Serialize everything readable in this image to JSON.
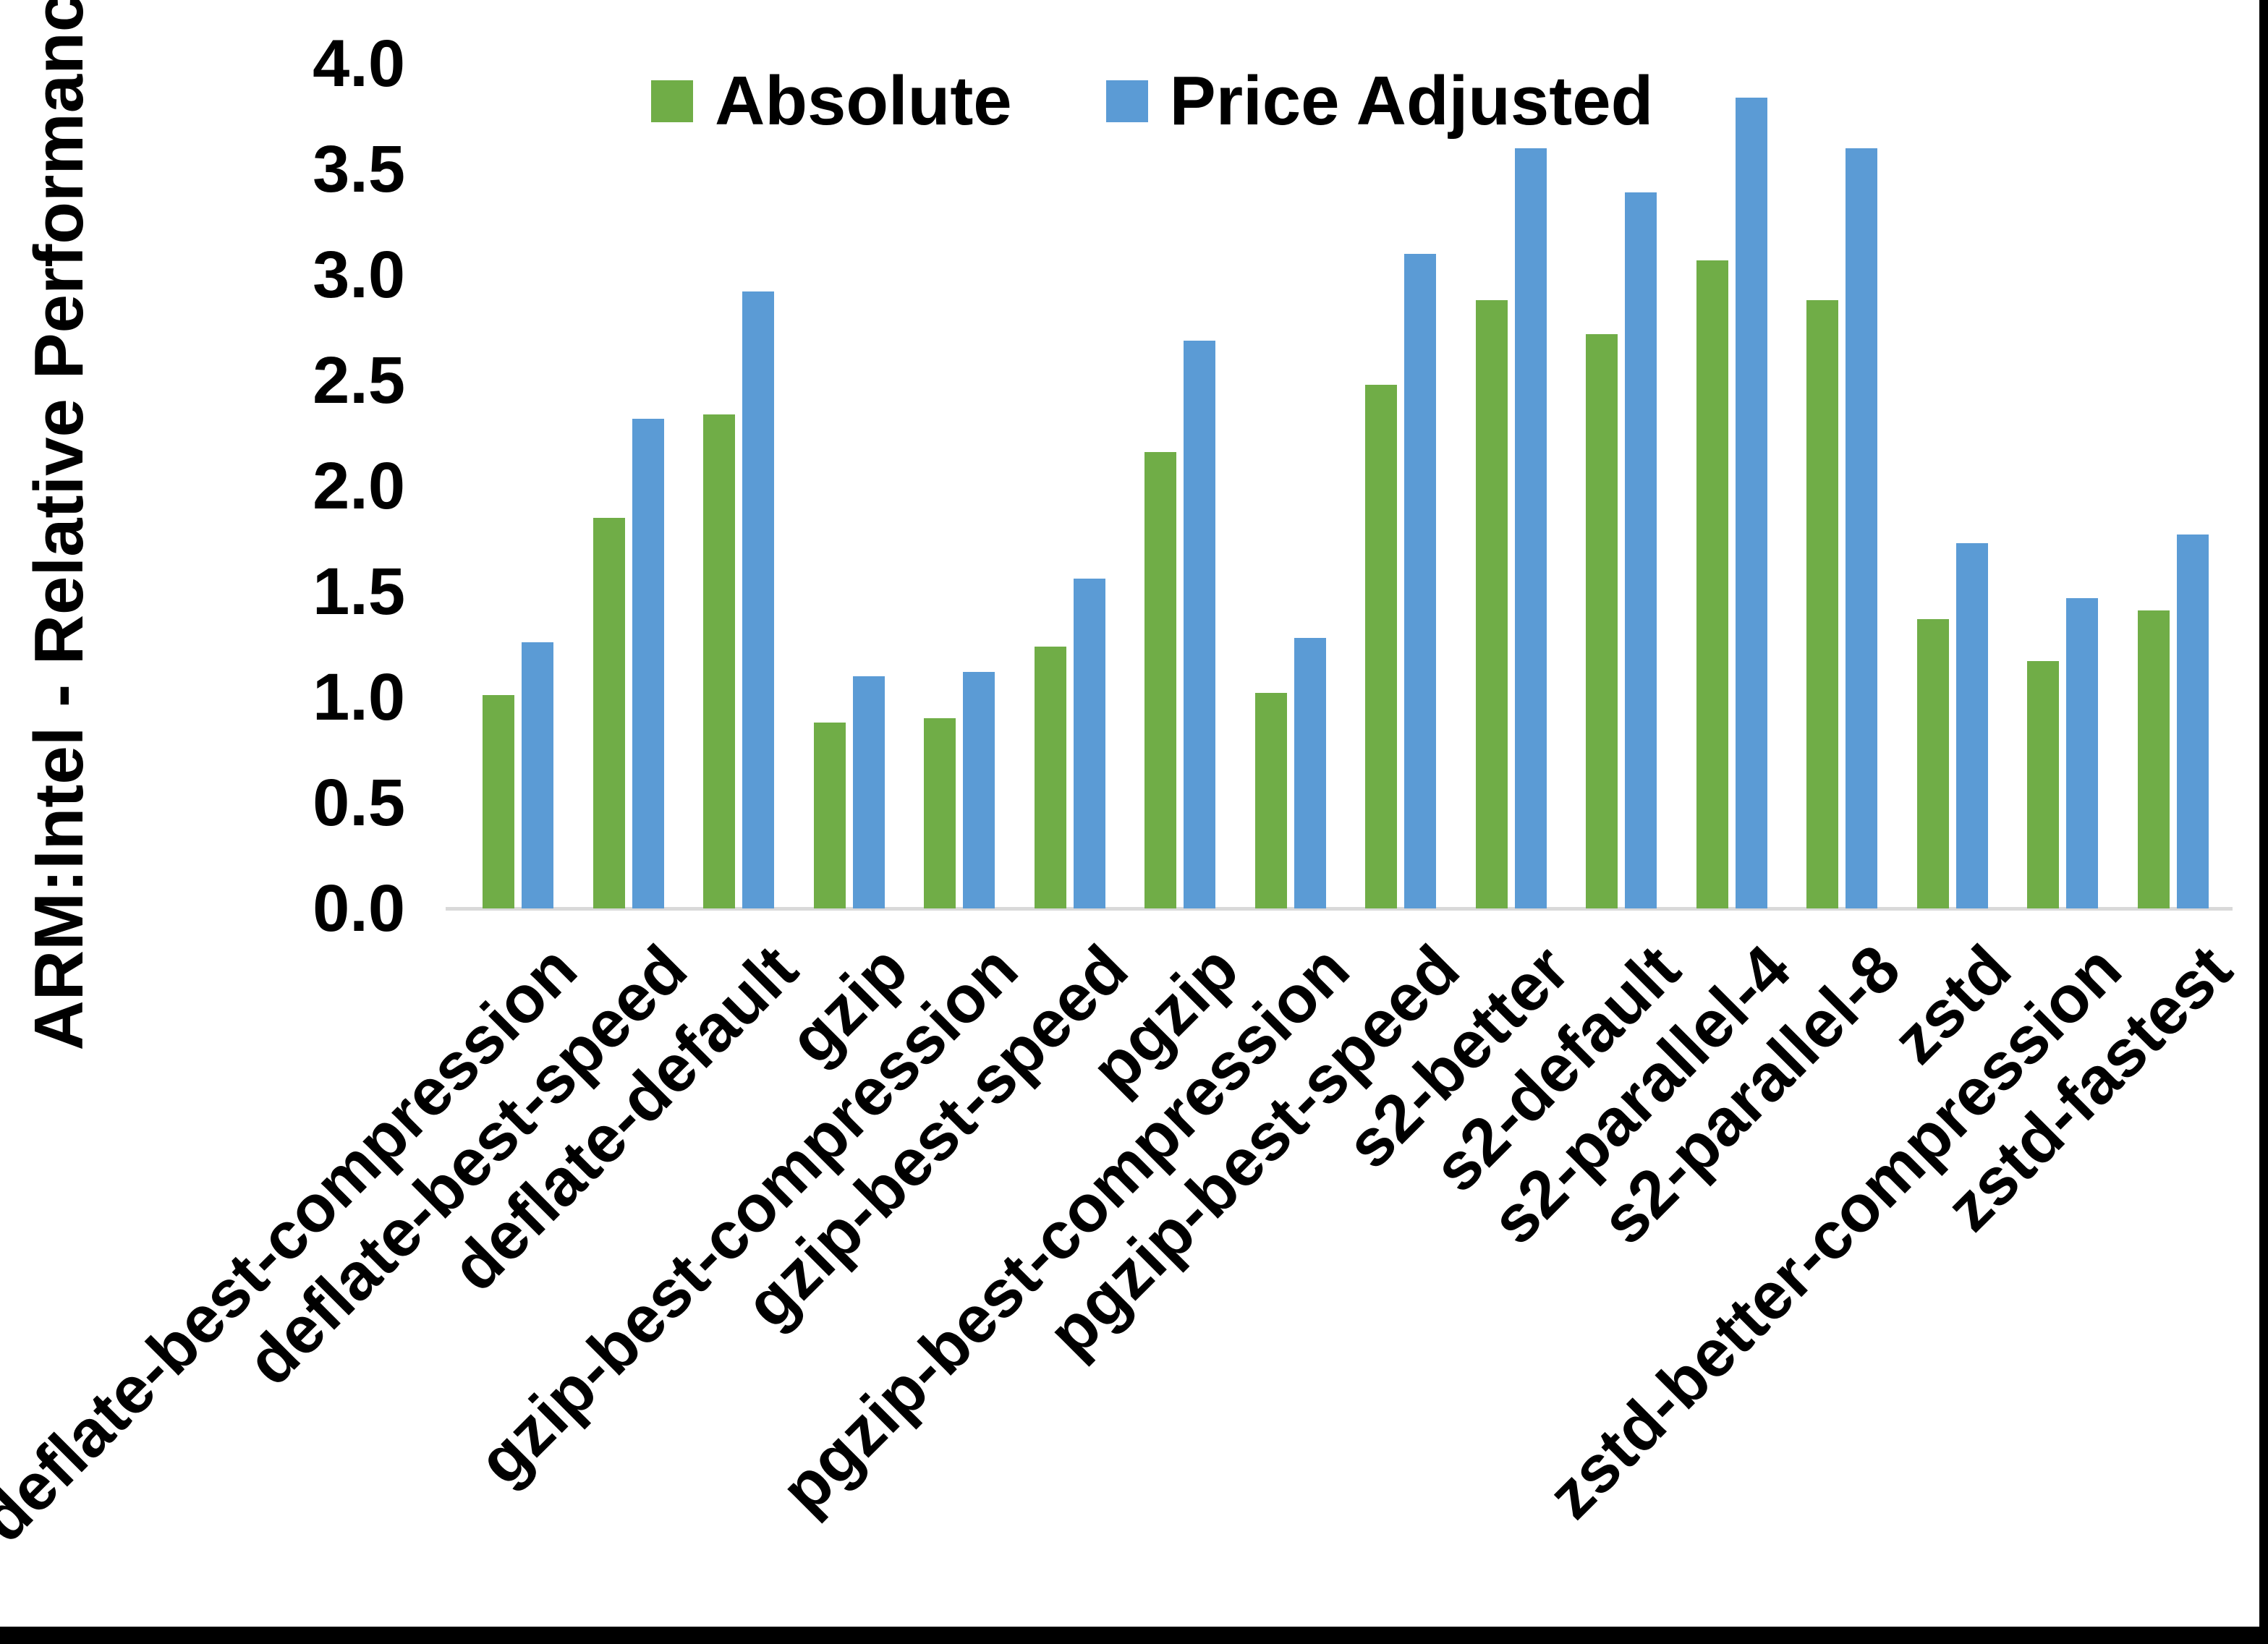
{
  "chart_data": {
    "type": "bar",
    "title": "",
    "xlabel": "",
    "ylabel": "ARM:Intel - Relative Performance",
    "ylim": [
      0.0,
      4.0
    ],
    "y_tick_step": 0.5,
    "y_tick_labels": [
      "0.0",
      "0.5",
      "1.0",
      "1.5",
      "2.0",
      "2.5",
      "3.0",
      "3.5",
      "4.0"
    ],
    "grid": false,
    "legend_position": "top-center",
    "categories": [
      "deflate-best-compression",
      "deflate-best-speed",
      "deflate-default",
      "gzip",
      "gzip-best-compression",
      "gzip-best-speed",
      "pgzip",
      "pgzip-best-compression",
      "pgzip-best-speed",
      "s2-better",
      "s2-default",
      "s2-parallel-4",
      "s2-parallel-8",
      "zstd",
      "zstd-better-compression",
      "zstd-fastest"
    ],
    "series": [
      {
        "name": "Absolute",
        "color": "#70AD47",
        "values": [
          1.01,
          1.85,
          2.34,
          0.88,
          0.9,
          1.24,
          2.16,
          1.02,
          2.48,
          2.88,
          2.72,
          3.07,
          2.88,
          1.37,
          1.17,
          1.41
        ]
      },
      {
        "name": "Price Adjusted",
        "color": "#5B9BD5",
        "values": [
          1.26,
          2.32,
          2.92,
          1.1,
          1.12,
          1.56,
          2.69,
          1.28,
          3.1,
          3.6,
          3.39,
          3.84,
          3.6,
          1.73,
          1.47,
          1.77
        ]
      }
    ]
  },
  "colors": {
    "axis_line": "#D9D9D9",
    "text": "#000000",
    "background": "#FFFFFF",
    "frame_border": "#000000"
  }
}
